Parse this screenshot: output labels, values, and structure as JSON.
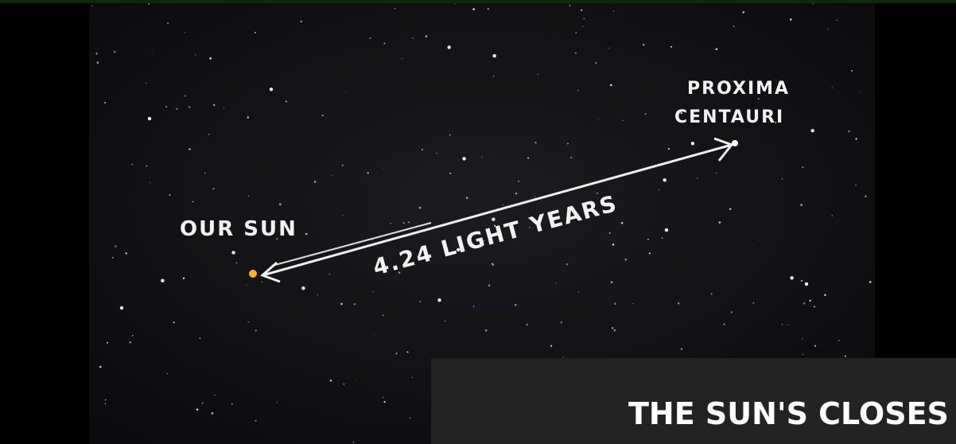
{
  "image": {
    "labels": {
      "sun": "OUR SUN",
      "star_line1": "PROXIMA",
      "star_line2": "CENTAURI",
      "distance": "4.24 LIGHT YEARS"
    }
  },
  "caption": {
    "text": "THE SUN'S CLOSES"
  }
}
